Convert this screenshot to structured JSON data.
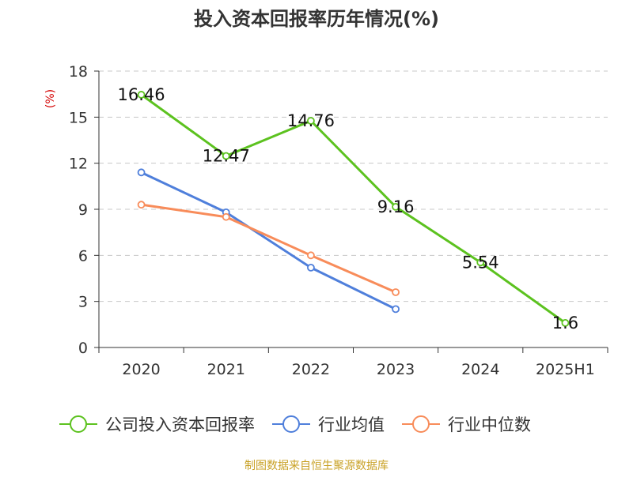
{
  "chart_data": {
    "type": "line",
    "title": "投入资本回报率历年情况(%)",
    "ylabel": "(%)",
    "xlabel": "",
    "categories": [
      "2020",
      "2021",
      "2022",
      "2023",
      "2024",
      "2025H1"
    ],
    "y_ticks": [
      0,
      3,
      6,
      9,
      12,
      15,
      18
    ],
    "ylim": [
      0,
      18
    ],
    "grid": true,
    "legend_position": "bottom",
    "series": [
      {
        "name": "公司投入资本回报率",
        "color": "#5cc21f",
        "values": [
          16.46,
          12.47,
          14.76,
          9.16,
          5.54,
          1.6
        ],
        "labels": [
          "16.46",
          "12.47",
          "14.76",
          "9.16",
          "5.54",
          "1.6"
        ]
      },
      {
        "name": "行业均值",
        "color": "#4f7fdb",
        "values": [
          11.4,
          8.8,
          5.2,
          2.5,
          null,
          null
        ]
      },
      {
        "name": "行业中位数",
        "color": "#f88c5a",
        "values": [
          9.3,
          8.5,
          6.0,
          3.6,
          null,
          null
        ]
      }
    ],
    "source": "制图数据来自恒生聚源数据库"
  }
}
